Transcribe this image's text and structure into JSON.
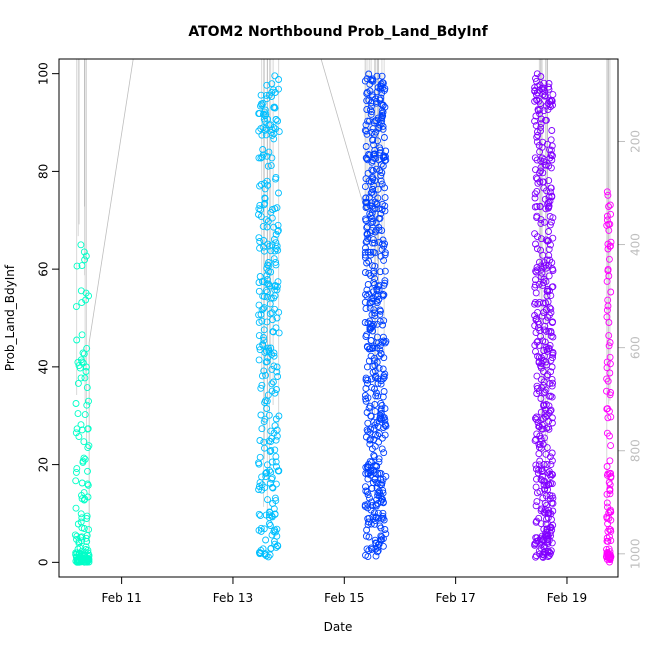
{
  "chart_data": {
    "type": "scatter",
    "title": "ATOM2 Northbound Prob_Land_BdyInf",
    "xlabel": "Date",
    "ylabel": "Prob_Land_BdyInf",
    "x_ticks": [
      "Feb 11",
      "Feb 13",
      "Feb 15",
      "Feb 17",
      "Feb 19"
    ],
    "x_tick_dates": [
      "2015-02-11",
      "2015-02-13",
      "2015-02-15",
      "2015-02-17",
      "2015-02-19"
    ],
    "xlim": [
      "2015-02-09T21:00",
      "2015-02-19T22:00"
    ],
    "y_ticks": [
      0,
      20,
      40,
      60,
      80,
      100
    ],
    "ylim": [
      -3,
      103
    ],
    "right_axis": {
      "ticks": [
        200,
        400,
        600,
        800,
        1000
      ],
      "lim": [
        40,
        1045
      ],
      "color": "#bebebe"
    },
    "grid": false,
    "groups": [
      {
        "x_start": "2015-02-10T04:00",
        "x_end": "2015-02-10T10:00",
        "y_min": 0,
        "y_max": 66,
        "count": 140,
        "color": "#00ffc8",
        "skew": 2.2,
        "zero_cluster": 30
      },
      {
        "x_start": "2015-02-13T11:00",
        "x_end": "2015-02-13T20:00",
        "y_min": 1,
        "y_max": 100,
        "count": 300,
        "color": "#00bfff",
        "skew": 1.1,
        "zero_cluster": 0
      },
      {
        "x_start": "2015-02-15T09:00",
        "x_end": "2015-02-15T18:00",
        "y_min": 1,
        "y_max": 100,
        "count": 500,
        "color": "#0040ff",
        "skew": 1.0,
        "zero_cluster": 0
      },
      {
        "x_start": "2015-02-18T10:00",
        "x_end": "2015-02-18T18:00",
        "y_min": 1,
        "y_max": 100,
        "count": 450,
        "color": "#8000ff",
        "skew": 1.3,
        "zero_cluster": 0
      },
      {
        "x_start": "2015-02-19T17:00",
        "x_end": "2015-02-19T19:00",
        "y_min": 0,
        "y_max": 78,
        "count": 110,
        "color": "#ff00ff",
        "skew": 1.2,
        "zero_cluster": 18
      }
    ],
    "depth_line": {
      "color": "#bebebe",
      "points": [
        {
          "x": "2015-02-10T10:00",
          "y": 980
        },
        {
          "x": "2015-02-10T10:00",
          "y": 590
        },
        {
          "x": "2015-02-11T05:00",
          "y": 35
        },
        {
          "x": "2015-02-14T14:00",
          "y": 35
        },
        {
          "x": "2015-02-15T09:00",
          "y": 335
        },
        {
          "x": "2015-02-15T09:00",
          "y": 40
        }
      ]
    }
  }
}
